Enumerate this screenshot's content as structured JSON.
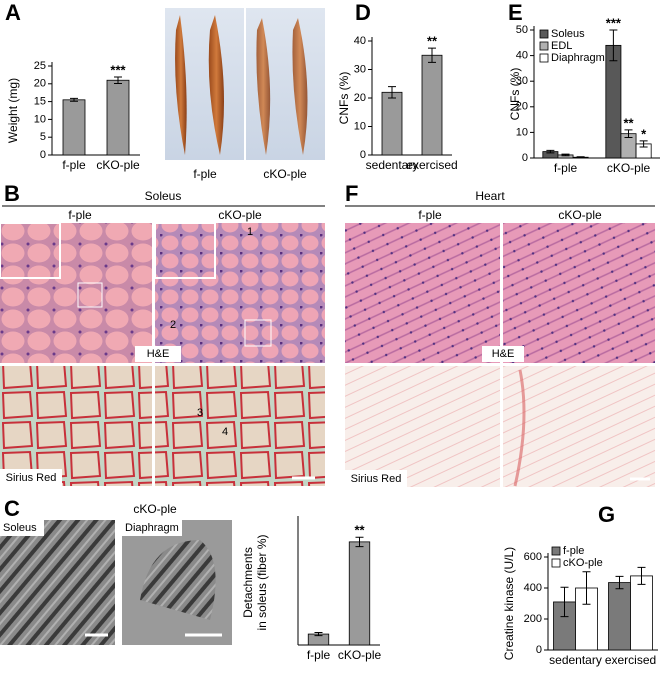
{
  "panel_letters": [
    "A",
    "B",
    "C",
    "D",
    "E",
    "F",
    "G"
  ],
  "photo_labels": [
    "f-ple",
    "cKO-ple"
  ],
  "soleus_histology": {
    "title": "Soleus",
    "columns": [
      "f-ple",
      "cKO-ple"
    ],
    "stains": [
      "H&E",
      "Sirius Red"
    ],
    "markers": [
      "1",
      "2",
      "3",
      "4"
    ]
  },
  "heart_histology": {
    "title": "Heart",
    "columns": [
      "f-ple",
      "cKO-ple"
    ],
    "stains": [
      "H&E",
      "Sirius Red"
    ]
  },
  "electron_micrographs": {
    "title": "cKO-ple",
    "labels": [
      "Soleus",
      "Diaphragm"
    ]
  },
  "chart_data": [
    {
      "type": "bar",
      "ylabel": [
        "Weight (mg)"
      ],
      "categories": [
        "f-ple",
        "cKO-ple"
      ],
      "series": [
        {
          "color": "#9a9a9a",
          "values": [
            15.5,
            21
          ],
          "errors": [
            0.4,
            0.9
          ]
        }
      ],
      "ylim": [
        0,
        25
      ],
      "yticks": [
        0,
        5,
        10,
        15,
        20,
        25
      ],
      "annotations": [
        "***"
      ]
    },
    {
      "type": "bar",
      "ylabel": [
        "CNFs (%)"
      ],
      "categories": [
        "sedentary",
        "exercised"
      ],
      "series": [
        {
          "color": "#9a9a9a",
          "values": [
            22,
            35
          ],
          "errors": [
            2,
            2.5
          ]
        }
      ],
      "ylim": [
        0,
        40
      ],
      "yticks": [
        0,
        10,
        20,
        30,
        40
      ],
      "annotations": [
        "**"
      ]
    },
    {
      "type": "bar",
      "ylabel": [
        "CNFs (%)"
      ],
      "categories": [
        "f-ple",
        "cKO-ple"
      ],
      "series": [
        {
          "name": "Soleus",
          "color": "#585858",
          "values": [
            2.5,
            44
          ],
          "errors": [
            0.5,
            6
          ]
        },
        {
          "name": "EDL",
          "color": "#b0b0b0",
          "values": [
            1.2,
            9.5
          ],
          "errors": [
            0.3,
            1.5
          ]
        },
        {
          "name": "Diaphragm",
          "color": "#ffffff",
          "values": [
            0.3,
            5.5
          ],
          "errors": [
            0.2,
            1.2
          ]
        }
      ],
      "ylim": [
        0,
        50
      ],
      "yticks": [
        0,
        10,
        20,
        30,
        40,
        50
      ],
      "legend": "top-left",
      "annotations": [
        "***",
        "**",
        "*"
      ]
    },
    {
      "type": "bar",
      "ylabel": [
        "Detachments",
        "in soleus (fiber %)"
      ],
      "categories": [
        "f-ple",
        "cKO-ple"
      ],
      "series": [
        {
          "color": "#9a9a9a",
          "values": [
            7,
            66
          ],
          "errors": [
            1,
            3
          ]
        }
      ],
      "ylim": [
        0,
        80
      ],
      "annotations": [
        "**"
      ]
    },
    {
      "type": "bar",
      "ylabel": [
        "Creatine kinase (U/L)"
      ],
      "categories": [
        "sedentary",
        "exercised"
      ],
      "series": [
        {
          "name": "f-ple",
          "color": "#7a7a7a",
          "values": [
            310,
            435
          ],
          "errors": [
            95,
            40
          ]
        },
        {
          "name": "cKO-ple",
          "color": "#ffffff",
          "values": [
            400,
            478
          ],
          "errors": [
            105,
            55
          ]
        }
      ],
      "ylim": [
        0,
        600
      ],
      "yticks": [
        0,
        200,
        400,
        600
      ],
      "legend": "top-left"
    }
  ]
}
